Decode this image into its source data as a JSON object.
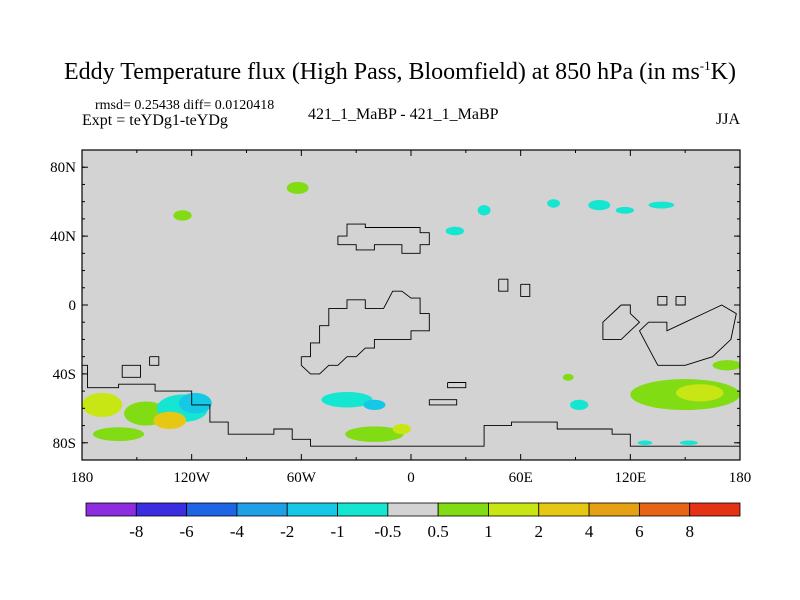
{
  "title": {
    "main": "Eddy Temperature flux (High Pass, Bloomfield) at 850 hPa (in ms",
    "sup": "-1",
    "end": "K)"
  },
  "stats": "rmsd= 0.25438 diff= 0.0120418",
  "expt": "Expt = teYDg1-teYDg",
  "center_label": "421_1_MaBP - 421_1_MaBP",
  "season": "JJA",
  "chart_data": {
    "type": "heatmap",
    "x_ticks": [
      {
        "value": -180,
        "label": "180"
      },
      {
        "value": -120,
        "label": "120W"
      },
      {
        "value": -60,
        "label": "60W"
      },
      {
        "value": 0,
        "label": "0"
      },
      {
        "value": 60,
        "label": "60E"
      },
      {
        "value": 120,
        "label": "120E"
      },
      {
        "value": 180,
        "label": "180"
      }
    ],
    "y_ticks": [
      {
        "value": 80,
        "label": "80N"
      },
      {
        "value": 40,
        "label": "40N"
      },
      {
        "value": 0,
        "label": "0"
      },
      {
        "value": -40,
        "label": "40S"
      },
      {
        "value": -80,
        "label": "80S"
      }
    ],
    "xlim": [
      -180,
      180
    ],
    "ylim": [
      -90,
      90
    ],
    "background_color": "#d3d3d3",
    "colorbar": {
      "levels": [
        "-8",
        "-6",
        "-4",
        "-2",
        "-1",
        "-0.5",
        "0.5",
        "1",
        "2",
        "4",
        "6",
        "8"
      ],
      "colors": [
        "#8c2ee0",
        "#3a2ee0",
        "#1e64e6",
        "#1ea0e6",
        "#14c8e6",
        "#14e6d2",
        "#d3d3d3",
        "#82dc14",
        "#c8e614",
        "#e6c814",
        "#e6a014",
        "#e66414",
        "#e63214"
      ]
    },
    "patches": [
      {
        "lon": -169,
        "lat": -58,
        "rx": 11,
        "ry": 7,
        "color": "#c8e614"
      },
      {
        "lon": -145,
        "lat": -63,
        "rx": 12,
        "ry": 7,
        "color": "#82dc14"
      },
      {
        "lon": -125,
        "lat": -60,
        "rx": 14,
        "ry": 8,
        "color": "#14e6d2"
      },
      {
        "lon": -118,
        "lat": -57,
        "rx": 9,
        "ry": 6,
        "color": "#14c8e6"
      },
      {
        "lon": -132,
        "lat": -67,
        "rx": 9,
        "ry": 5,
        "color": "#e6c814"
      },
      {
        "lon": -160,
        "lat": -75,
        "rx": 14,
        "ry": 4,
        "color": "#82dc14"
      },
      {
        "lon": -125,
        "lat": 52,
        "rx": 5,
        "ry": 3,
        "color": "#82dc14"
      },
      {
        "lon": -62,
        "lat": 68,
        "rx": 6,
        "ry": 3.5,
        "color": "#82dc14"
      },
      {
        "lon": -35,
        "lat": -55,
        "rx": 14,
        "ry": 4.5,
        "color": "#14e6d2"
      },
      {
        "lon": -20,
        "lat": -58,
        "rx": 6,
        "ry": 3,
        "color": "#14c8e6"
      },
      {
        "lon": -20,
        "lat": -75,
        "rx": 16,
        "ry": 4.5,
        "color": "#82dc14"
      },
      {
        "lon": -5,
        "lat": -72,
        "rx": 5,
        "ry": 3,
        "color": "#c8e614"
      },
      {
        "lon": 24,
        "lat": 43,
        "rx": 5,
        "ry": 2.5,
        "color": "#14e6d2"
      },
      {
        "lon": 40,
        "lat": 55,
        "rx": 3.5,
        "ry": 3,
        "color": "#14e6d2"
      },
      {
        "lon": 78,
        "lat": 59,
        "rx": 3.5,
        "ry": 2.5,
        "color": "#14e6d2"
      },
      {
        "lon": 103,
        "lat": 58,
        "rx": 6,
        "ry": 3,
        "color": "#14e6d2"
      },
      {
        "lon": 117,
        "lat": 55,
        "rx": 5,
        "ry": 2,
        "color": "#14e6d2"
      },
      {
        "lon": 137,
        "lat": 58,
        "rx": 7,
        "ry": 2,
        "color": "#14e6d2"
      },
      {
        "lon": 92,
        "lat": -58,
        "rx": 5,
        "ry": 3,
        "color": "#14e6d2"
      },
      {
        "lon": 86,
        "lat": -42,
        "rx": 3,
        "ry": 2,
        "color": "#82dc14"
      },
      {
        "lon": 150,
        "lat": -52,
        "rx": 30,
        "ry": 9,
        "color": "#82dc14"
      },
      {
        "lon": 158,
        "lat": -51,
        "rx": 13,
        "ry": 5,
        "color": "#c8e614"
      },
      {
        "lon": 173,
        "lat": -35,
        "rx": 8,
        "ry": 3,
        "color": "#82dc14"
      },
      {
        "lon": 128,
        "lat": -80,
        "rx": 4,
        "ry": 1.3,
        "color": "#14e6d2"
      },
      {
        "lon": 152,
        "lat": -80,
        "rx": 5,
        "ry": 1.3,
        "color": "#14e6d2"
      }
    ],
    "outline_paths": [
      [
        [
          -180,
          -35
        ],
        [
          -177,
          -35
        ],
        [
          -177,
          -48
        ],
        [
          -160,
          -48
        ],
        [
          -160,
          -46
        ],
        [
          -140,
          -46
        ],
        [
          -140,
          -50
        ],
        [
          -120,
          -50
        ],
        [
          -120,
          -58
        ],
        [
          -110,
          -58
        ],
        [
          -110,
          -68
        ],
        [
          -100,
          -68
        ],
        [
          -100,
          -75
        ],
        [
          -75,
          -75
        ],
        [
          -75,
          -72
        ],
        [
          -65,
          -72
        ],
        [
          -65,
          -78
        ],
        [
          -55,
          -78
        ],
        [
          -55,
          -82
        ],
        [
          40,
          -82
        ],
        [
          40,
          -70
        ],
        [
          55,
          -70
        ],
        [
          55,
          -68
        ],
        [
          80,
          -68
        ],
        [
          80,
          -72
        ],
        [
          110,
          -72
        ],
        [
          110,
          -75
        ],
        [
          120,
          -75
        ],
        [
          120,
          -82
        ],
        [
          180,
          -82
        ]
      ],
      [
        [
          -158,
          -35
        ],
        [
          -148,
          -35
        ],
        [
          -148,
          -42
        ],
        [
          -158,
          -42
        ],
        [
          -158,
          -35
        ]
      ],
      [
        [
          -143,
          -30
        ],
        [
          -138,
          -30
        ],
        [
          -138,
          -35
        ],
        [
          -143,
          -35
        ],
        [
          -143,
          -30
        ]
      ],
      [
        [
          -60,
          -30
        ],
        [
          -55,
          -30
        ],
        [
          -55,
          -22
        ],
        [
          -50,
          -22
        ],
        [
          -50,
          -12
        ],
        [
          -45,
          -12
        ],
        [
          -45,
          -2
        ],
        [
          -35,
          -2
        ],
        [
          -35,
          3
        ],
        [
          -25,
          3
        ],
        [
          -25,
          -2
        ],
        [
          -15,
          -2
        ],
        [
          -10,
          8
        ],
        [
          -5,
          8
        ],
        [
          0,
          4
        ],
        [
          5,
          4
        ],
        [
          5,
          -5
        ],
        [
          10,
          -5
        ],
        [
          10,
          -15
        ],
        [
          0,
          -15
        ],
        [
          0,
          -20
        ],
        [
          -20,
          -20
        ],
        [
          -20,
          -25
        ],
        [
          -25,
          -25
        ],
        [
          -30,
          -30
        ],
        [
          -35,
          -30
        ],
        [
          -40,
          -35
        ],
        [
          -45,
          -35
        ],
        [
          -50,
          -40
        ],
        [
          -55,
          -40
        ],
        [
          -60,
          -35
        ],
        [
          -60,
          -30
        ]
      ],
      [
        [
          -40,
          40
        ],
        [
          -35,
          40
        ],
        [
          -35,
          47
        ],
        [
          -25,
          47
        ],
        [
          -25,
          45
        ],
        [
          5,
          45
        ],
        [
          5,
          42
        ],
        [
          10,
          42
        ],
        [
          10,
          35
        ],
        [
          5,
          35
        ],
        [
          5,
          30
        ],
        [
          -5,
          30
        ],
        [
          -5,
          35
        ],
        [
          -20,
          35
        ],
        [
          -20,
          32
        ],
        [
          -30,
          32
        ],
        [
          -30,
          35
        ],
        [
          -40,
          35
        ],
        [
          -40,
          40
        ]
      ],
      [
        [
          48,
          15
        ],
        [
          53,
          15
        ],
        [
          53,
          8
        ],
        [
          48,
          8
        ],
        [
          48,
          15
        ]
      ],
      [
        [
          60,
          12
        ],
        [
          65,
          12
        ],
        [
          65,
          5
        ],
        [
          60,
          5
        ],
        [
          60,
          12
        ]
      ],
      [
        [
          20,
          -45
        ],
        [
          30,
          -45
        ],
        [
          30,
          -48
        ],
        [
          20,
          -48
        ],
        [
          20,
          -45
        ]
      ],
      [
        [
          10,
          -55
        ],
        [
          25,
          -55
        ],
        [
          25,
          -58
        ],
        [
          10,
          -58
        ],
        [
          10,
          -55
        ]
      ],
      [
        [
          115,
          0
        ],
        [
          120,
          0
        ],
        [
          120,
          -5
        ],
        [
          125,
          -10
        ],
        [
          120,
          -15
        ],
        [
          115,
          -20
        ],
        [
          105,
          -20
        ],
        [
          105,
          -10
        ],
        [
          115,
          0
        ]
      ],
      [
        [
          130,
          -10
        ],
        [
          140,
          -10
        ],
        [
          140,
          -15
        ],
        [
          150,
          -10
        ],
        [
          160,
          -5
        ],
        [
          170,
          0
        ],
        [
          178,
          -5
        ],
        [
          175,
          -20
        ],
        [
          165,
          -30
        ],
        [
          150,
          -35
        ],
        [
          135,
          -35
        ],
        [
          130,
          -25
        ],
        [
          125,
          -15
        ],
        [
          130,
          -10
        ]
      ],
      [
        [
          135,
          5
        ],
        [
          140,
          5
        ],
        [
          140,
          0
        ],
        [
          135,
          0
        ],
        [
          135,
          5
        ]
      ],
      [
        [
          145,
          5
        ],
        [
          150,
          5
        ],
        [
          150,
          0
        ],
        [
          145,
          0
        ],
        [
          145,
          5
        ]
      ]
    ]
  }
}
